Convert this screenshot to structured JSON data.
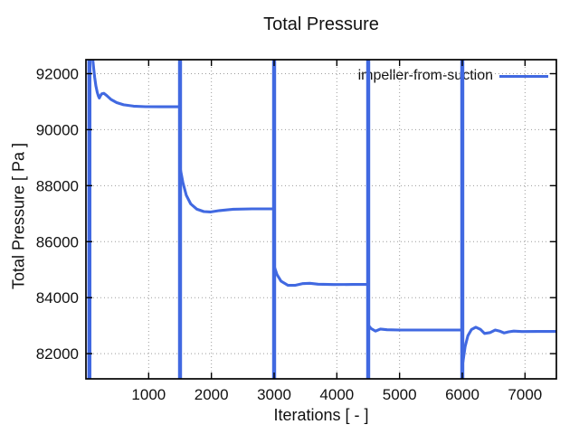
{
  "chart_data": {
    "type": "line",
    "title": "Total Pressure",
    "xlabel": "Iterations [ - ]",
    "ylabel": "Total Pressure [ Pa ]",
    "legend": {
      "label": "impeller-from-suction",
      "position": "top-right"
    },
    "line_color": "#4169e1",
    "grid": true,
    "grid_style": "dotted",
    "xlim": [
      0,
      7500
    ],
    "ylim": [
      81100,
      92500
    ],
    "xticks": [
      1000,
      2000,
      3000,
      4000,
      5000,
      6000,
      7000
    ],
    "yticks": [
      82000,
      84000,
      86000,
      88000,
      90000,
      92000
    ],
    "series": [
      {
        "name": "impeller-from-suction",
        "points": [
          [
            110,
            92500
          ],
          [
            122,
            92200
          ],
          [
            138,
            91880
          ],
          [
            158,
            91560
          ],
          [
            180,
            91330
          ],
          [
            200,
            91190
          ],
          [
            213,
            91130
          ],
          [
            228,
            91200
          ],
          [
            252,
            91280
          ],
          [
            285,
            91300
          ],
          [
            330,
            91220
          ],
          [
            400,
            91080
          ],
          [
            490,
            90965
          ],
          [
            600,
            90890
          ],
          [
            760,
            90840
          ],
          [
            950,
            90822
          ],
          [
            1200,
            90818
          ],
          [
            1495,
            90818
          ],
          [
            1505,
            88600
          ],
          [
            1545,
            88120
          ],
          [
            1600,
            87660
          ],
          [
            1670,
            87350
          ],
          [
            1770,
            87160
          ],
          [
            1880,
            87075
          ],
          [
            1990,
            87060
          ],
          [
            2130,
            87110
          ],
          [
            2350,
            87160
          ],
          [
            2650,
            87172
          ],
          [
            2995,
            87172
          ],
          [
            3005,
            85100
          ],
          [
            3045,
            84830
          ],
          [
            3110,
            84590
          ],
          [
            3220,
            84440
          ],
          [
            3330,
            84440
          ],
          [
            3450,
            84500
          ],
          [
            3570,
            84515
          ],
          [
            3700,
            84480
          ],
          [
            3950,
            84468
          ],
          [
            4250,
            84473
          ],
          [
            4495,
            84473
          ],
          [
            4505,
            83010
          ],
          [
            4545,
            82900
          ],
          [
            4615,
            82805
          ],
          [
            4695,
            82880
          ],
          [
            4800,
            82855
          ],
          [
            5000,
            82843
          ],
          [
            5400,
            82843
          ],
          [
            5995,
            82843
          ],
          [
            6010,
            81700
          ],
          [
            6045,
            82250
          ],
          [
            6090,
            82640
          ],
          [
            6145,
            82860
          ],
          [
            6215,
            82945
          ],
          [
            6290,
            82865
          ],
          [
            6355,
            82720
          ],
          [
            6445,
            82755
          ],
          [
            6525,
            82845
          ],
          [
            6605,
            82798
          ],
          [
            6665,
            82740
          ],
          [
            6740,
            82778
          ],
          [
            6820,
            82806
          ],
          [
            6950,
            82790
          ],
          [
            7200,
            82792
          ],
          [
            7499,
            82792
          ]
        ],
        "restart_spikes_x": [
          55,
          1500,
          3000,
          4500,
          6000
        ]
      }
    ]
  }
}
